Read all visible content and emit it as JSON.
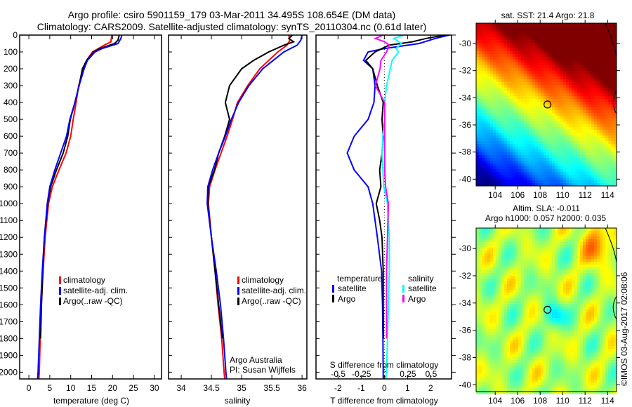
{
  "title_line1": "Argo profile: csiro 5901159_179 03-Mar-2011 34.495S 108.654E (DM data)",
  "title_line2": "Climatology: CARS2009. Satellite-adjusted climatology: synTS_20110304.nc (0.61d later)",
  "colors": {
    "climatology": "#ff0000",
    "satellite": "#0000ff",
    "argo": "#000000",
    "sal_satellite": "#00ffff",
    "sal_argo": "#ff00ff"
  },
  "chart_data": [
    {
      "id": "temperature",
      "type": "line",
      "xlabel": "temperature (deg C)",
      "ylabel": "",
      "xlim": [
        -2.2,
        31.7
      ],
      "ylim": [
        2040,
        0
      ],
      "xticks": [
        "0",
        "5",
        "10",
        "15",
        "20",
        "25",
        "30"
      ],
      "yticks": [
        "0",
        "100",
        "200",
        "300",
        "400",
        "500",
        "600",
        "700",
        "800",
        "900",
        "1000",
        "1100",
        "1200",
        "1300",
        "1400",
        "1500",
        "1600",
        "1700",
        "1800",
        "1900",
        "2000"
      ],
      "legend": [
        "climatology",
        "satellite-adj. clim.",
        "Argo(..raw -QC)"
      ],
      "series": [
        {
          "name": "climatology",
          "color": "#ff0000",
          "depth": [
            0,
            40,
            60,
            100,
            150,
            200,
            300,
            400,
            500,
            600,
            700,
            800,
            900,
            1000,
            1200,
            1400,
            1600,
            1800,
            2000,
            2040
          ],
          "values": [
            19.8,
            19.6,
            18,
            15.2,
            13.8,
            13,
            11.9,
            11.3,
            10.6,
            10,
            8.9,
            7.2,
            5.6,
            4.7,
            3.9,
            3.4,
            3.0,
            2.7,
            2.5,
            2.4
          ]
        },
        {
          "name": "Argo",
          "color": "#000000",
          "depth": [
            0,
            30,
            50,
            80,
            100,
            150,
            200,
            300,
            400,
            500,
            600,
            700,
            800,
            900,
            1000,
            1200,
            1400,
            1600,
            1800
          ],
          "values": [
            21.6,
            21.3,
            20.5,
            17,
            15.5,
            13.8,
            12.8,
            12,
            11,
            9.9,
            9.3,
            8.2,
            6.6,
            5.2,
            4.5,
            3.7,
            3.3,
            3.0,
            2.8
          ]
        },
        {
          "name": "satellite-adj. clim.",
          "color": "#0000ff",
          "depth": [
            0,
            20,
            50,
            80,
            100,
            150,
            200,
            300,
            400,
            500,
            600,
            700,
            800,
            900,
            1000,
            1200,
            1400,
            1600,
            1800,
            2000,
            2040
          ],
          "values": [
            22.2,
            22,
            21.3,
            17.5,
            15.8,
            14,
            13.2,
            12,
            11,
            9.8,
            9,
            7.6,
            6.2,
            5.0,
            4.4,
            3.7,
            3.2,
            2.8,
            2.5,
            2.2,
            2.1
          ]
        }
      ]
    },
    {
      "id": "salinity",
      "type": "line",
      "xlabel": "salinity",
      "xlim": [
        33.79,
        36.08
      ],
      "ylim": [
        2040,
        0
      ],
      "xticks": [
        "34",
        "34.5",
        "35",
        "35.5",
        "36"
      ],
      "legend": [
        "climatology",
        "satellite-adj. clim.",
        "Argo(..raw -QC)"
      ],
      "annotation": [
        "Argo Australia",
        "PI: Susan Wijffels"
      ],
      "series": [
        {
          "name": "climatology",
          "color": "#ff0000",
          "depth": [
            0,
            30,
            60,
            100,
            200,
            300,
            400,
            500,
            600,
            700,
            800,
            900,
            1000,
            1200,
            1400,
            1600,
            1800,
            2000,
            2040
          ],
          "values": [
            35.78,
            35.8,
            35.75,
            35.6,
            35.3,
            35.1,
            34.93,
            34.85,
            34.76,
            34.66,
            34.56,
            34.47,
            34.45,
            34.5,
            34.56,
            34.61,
            34.67,
            34.71,
            34.72
          ]
        },
        {
          "name": "Argo",
          "color": "#000000",
          "depth": [
            0,
            20,
            40,
            60,
            100,
            150,
            200,
            300,
            400,
            500,
            600,
            700,
            800,
            900,
            1000,
            1200,
            1400,
            1600,
            1800
          ],
          "values": [
            35.84,
            35.78,
            35.86,
            35.7,
            35.45,
            35.2,
            35.0,
            34.8,
            34.73,
            34.8,
            34.72,
            34.62,
            34.55,
            34.45,
            34.44,
            34.5,
            34.56,
            34.62,
            34.68
          ]
        },
        {
          "name": "satellite-adj. clim.",
          "color": "#0000ff",
          "depth": [
            0,
            30,
            60,
            100,
            200,
            300,
            400,
            500,
            600,
            700,
            800,
            900,
            1000,
            1200,
            1400,
            1600,
            1800,
            2000,
            2040
          ],
          "values": [
            36.0,
            35.98,
            35.92,
            35.7,
            35.35,
            35.12,
            34.95,
            34.83,
            34.73,
            34.62,
            34.52,
            34.44,
            34.43,
            34.5,
            34.58,
            34.65,
            34.7,
            34.74,
            34.75
          ]
        }
      ]
    },
    {
      "id": "difference",
      "type": "line",
      "xlabel": "T difference from climatology",
      "xlabel2": "S difference from climatology",
      "xlim": [
        -2.95,
        2.9
      ],
      "xlim2": [
        -0.74,
        0.72
      ],
      "ylim": [
        2040,
        0
      ],
      "xticks": [
        "-2",
        "-1",
        "0",
        "1",
        "2"
      ],
      "xticks2": [
        "-0.5",
        "-0.25",
        "0",
        "0.25",
        "0.5"
      ],
      "legend_headers": [
        "temperature",
        "salinity"
      ],
      "legend": [
        "satellite",
        "Argo",
        "satellite",
        "Argo"
      ],
      "series": [
        {
          "name": "T satellite",
          "color": "#0000ff",
          "axis": "T",
          "depth": [
            0,
            20,
            50,
            80,
            100,
            150,
            200,
            300,
            400,
            500,
            600,
            700,
            800,
            900,
            1000,
            1200,
            1400,
            1600,
            1800,
            2000,
            2040
          ],
          "values": [
            2.8,
            2.2,
            1.5,
            0,
            -0.7,
            -0.9,
            -0.5,
            -0.4,
            -0.45,
            -0.7,
            -1.3,
            -1.6,
            -1.3,
            -0.7,
            -0.5,
            -0.3,
            -0.12,
            -0.08,
            -0.06,
            -0.05,
            -0.05
          ]
        },
        {
          "name": "T Argo",
          "color": "#000000",
          "axis": "T",
          "depth": [
            0,
            20,
            40,
            60,
            100,
            150,
            200,
            300,
            400,
            500,
            600,
            700,
            800,
            900,
            1000,
            1100,
            1200,
            1400,
            1600,
            1800
          ],
          "values": [
            2.6,
            1.8,
            1.2,
            0.2,
            -0.4,
            -0.8,
            -0.5,
            -0.3,
            -0.05,
            -0.1,
            -0.05,
            -0.1,
            -0.2,
            -0.15,
            -0.35,
            -0.2,
            -0.1,
            -0.05,
            -0.05,
            -0.04
          ]
        },
        {
          "name": "S satellite",
          "color": "#00ffff",
          "axis": "S",
          "depth": [
            0,
            20,
            50,
            80,
            100,
            150,
            200,
            300,
            400,
            500,
            600,
            700,
            800,
            900,
            1000,
            1200,
            1400,
            1600,
            1800,
            2000,
            2040
          ],
          "values": [
            0.2,
            0.1,
            0.18,
            0.12,
            0.15,
            0.08,
            0.06,
            0.02,
            0.0,
            0.0,
            -0.02,
            -0.03,
            -0.02,
            -0.01,
            0.03,
            0.05,
            0.05,
            0.04,
            0.03,
            0.02,
            0.01
          ]
        },
        {
          "name": "S Argo",
          "color": "#ff00ff",
          "axis": "S",
          "depth": [
            0,
            20,
            40,
            60,
            100,
            150,
            200,
            300,
            400,
            500,
            600,
            700,
            800,
            900,
            1000,
            1200,
            1400,
            1600,
            1800
          ],
          "values": [
            -0.02,
            -0.1,
            0.0,
            0.05,
            0.02,
            -0.04,
            -0.05,
            -0.1,
            0.0,
            0.0,
            0.0,
            0.0,
            0.0,
            0.01,
            0.04,
            0.03,
            0.02,
            0.02,
            0.02
          ]
        }
      ]
    },
    {
      "id": "sst_map",
      "type": "heatmap",
      "title": "sat. SST: 21.4 Argo: 21.8",
      "xlim": [
        102.3,
        114.8
      ],
      "ylim": [
        -40.5,
        -28.5
      ],
      "xticks": [
        "104",
        "106",
        "108",
        "110",
        "112",
        "114"
      ],
      "yticks": [
        "-30",
        "-32",
        "-34",
        "-36",
        "-38",
        "-40"
      ],
      "marker": {
        "lon": 108.654,
        "lat": -34.495
      }
    },
    {
      "id": "sla_map",
      "type": "heatmap",
      "title_line1": "Altim. SLA: -0.011",
      "title_line2": "Argo h1000: 0.057 h2000: 0.035",
      "xlim": [
        102.3,
        114.8
      ],
      "ylim": [
        -40.5,
        -28.5
      ],
      "xticks": [
        "104",
        "106",
        "108",
        "110",
        "112",
        "114"
      ],
      "yticks": [
        "-30",
        "-32",
        "-34",
        "-36",
        "-38",
        "-40"
      ],
      "marker": {
        "lon": 108.654,
        "lat": -34.495
      }
    }
  ],
  "credit": "©IMOS 03-Aug-2017 02:08:06"
}
